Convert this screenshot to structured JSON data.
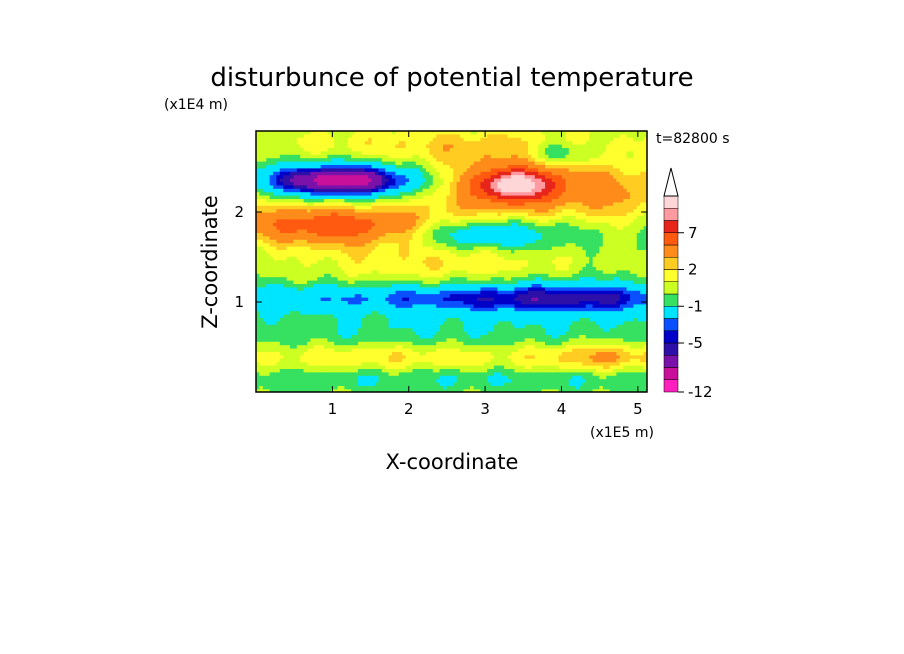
{
  "chart_data": {
    "type": "heatmap",
    "title": "disturbunce of potential temperature",
    "xlabel": "X-coordinate",
    "ylabel": "Z-coordinate",
    "x_unit": "(x1E5 m)",
    "y_unit": "(x1E4 m)",
    "time_label": "t=82800 s",
    "xlim": [
      0,
      5.12
    ],
    "ylim": [
      0,
      2.9
    ],
    "x_ticks": [
      1,
      2,
      3,
      4,
      5
    ],
    "y_ticks": [
      1,
      2
    ],
    "x_tick_labels": [
      "1",
      "2",
      "3",
      "4",
      "5"
    ],
    "y_tick_labels": [
      "1",
      "2"
    ],
    "grid": false,
    "colorbar": {
      "levels": [
        -12,
        -10,
        -8,
        -6,
        -5,
        -4,
        -3,
        -1,
        0,
        1,
        2,
        3,
        5,
        7,
        9,
        11
      ],
      "labeled_levels": [
        -12,
        -5,
        -1,
        2,
        7
      ],
      "labels": [
        "-12",
        "-5",
        "-1",
        "2",
        "7"
      ],
      "colors": [
        "#ff1fbf",
        "#c8109a",
        "#7a11a8",
        "#2c10a8",
        "#0000c8",
        "#0a50ff",
        "#00e5ff",
        "#36e060",
        "#ccff22",
        "#ffff2e",
        "#ffcc22",
        "#ff8c1a",
        "#ff5a10",
        "#e8251a",
        "#ff9aa0",
        "#ffd6d8"
      ],
      "extend": "max"
    },
    "features": [
      {
        "x": 1.1,
        "z": 2.35,
        "value": -8,
        "sx": 0.85,
        "sz": 0.15
      },
      {
        "x": 1.3,
        "z": 2.3,
        "value": -3,
        "sx": 1.6,
        "sz": 0.28
      },
      {
        "x": 1.0,
        "z": 1.85,
        "value": 5,
        "sx": 1.2,
        "sz": 0.2
      },
      {
        "x": 0.7,
        "z": 2.05,
        "value": 2,
        "sx": 2.2,
        "sz": 0.35
      },
      {
        "x": 3.4,
        "z": 2.3,
        "value": 9,
        "sx": 0.45,
        "sz": 0.16
      },
      {
        "x": 3.4,
        "z": 2.3,
        "value": 5,
        "sx": 1.3,
        "sz": 0.35
      },
      {
        "x": 3.0,
        "z": 1.75,
        "value": -4,
        "sx": 1.1,
        "sz": 0.18
      },
      {
        "x": 2.4,
        "z": 1.5,
        "value": 2,
        "sx": 1.8,
        "sz": 0.3
      },
      {
        "x": 0.9,
        "z": 1.45,
        "value": 0,
        "sx": 1.7,
        "sz": 0.3
      },
      {
        "x": 1.8,
        "z": 1.05,
        "value": -3,
        "sx": 3.0,
        "sz": 0.15
      },
      {
        "x": 4.2,
        "z": 1.05,
        "value": -4,
        "sx": 1.6,
        "sz": 0.18
      },
      {
        "x": 2.5,
        "z": 0.7,
        "value": -1,
        "sx": 3.8,
        "sz": 0.25
      },
      {
        "x": 1.7,
        "z": 0.4,
        "value": 2,
        "sx": 2.2,
        "sz": 0.15
      },
      {
        "x": 4.6,
        "z": 0.4,
        "value": 3,
        "sx": 0.9,
        "sz": 0.15
      },
      {
        "x": 2.6,
        "z": 0.15,
        "value": -1,
        "sx": 4.6,
        "sz": 0.12
      },
      {
        "x": 2.5,
        "z": 2.75,
        "value": 2,
        "sx": 2.8,
        "sz": 0.2
      },
      {
        "x": 4.0,
        "z": 2.65,
        "value": -3,
        "sx": 0.5,
        "sz": 0.15
      },
      {
        "x": 4.8,
        "z": 2.2,
        "value": 2,
        "sx": 0.6,
        "sz": 0.3
      }
    ]
  }
}
